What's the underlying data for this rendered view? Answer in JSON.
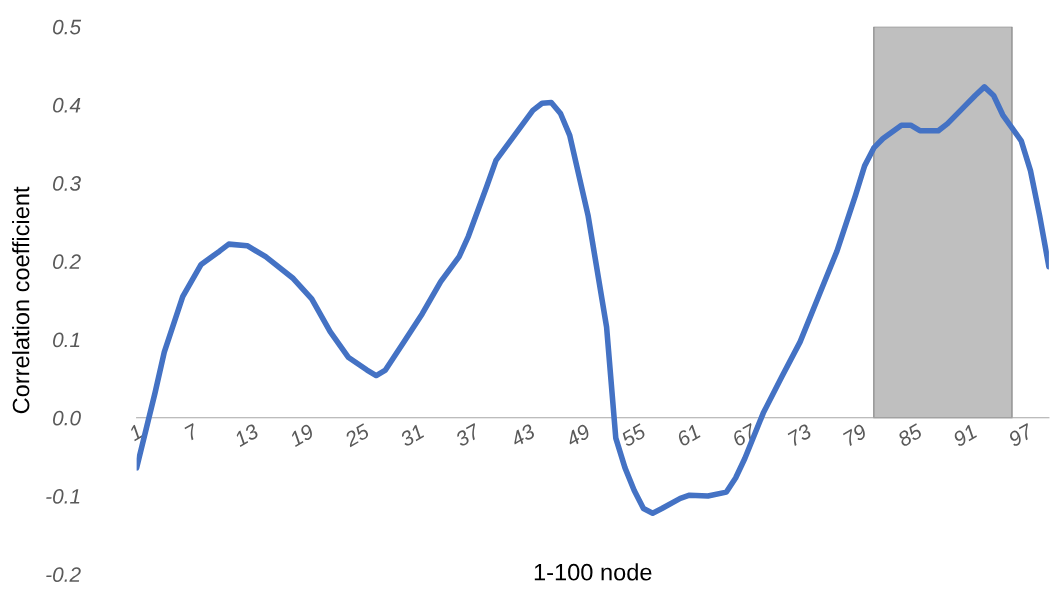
{
  "chart_data": {
    "type": "line",
    "xlabel": "1-100 node",
    "ylabel": "Correlation coefficient",
    "x": [
      1,
      3,
      4,
      6,
      8,
      10,
      11,
      13,
      15,
      18,
      20,
      22,
      24,
      26,
      27,
      28,
      30,
      32,
      34,
      36,
      37,
      39,
      40,
      42,
      44,
      45,
      46,
      47,
      48,
      50,
      52,
      53,
      54,
      55,
      56,
      57,
      58,
      60,
      61,
      63,
      65,
      66,
      67,
      69,
      71,
      73,
      75,
      77,
      79,
      80,
      81,
      82,
      84,
      85,
      86,
      88,
      89,
      91,
      92,
      93,
      94,
      95,
      97,
      98,
      99,
      100
    ],
    "series": [
      {
        "color": "#4472c4",
        "values": [
          -0.064,
          0.032,
          0.084,
          0.155,
          0.196,
          0.213,
          0.222,
          0.22,
          0.206,
          0.178,
          0.152,
          0.11,
          0.077,
          0.061,
          0.054,
          0.061,
          0.097,
          0.133,
          0.174,
          0.206,
          0.232,
          0.296,
          0.329,
          0.361,
          0.393,
          0.402,
          0.403,
          0.389,
          0.361,
          0.258,
          0.116,
          -0.026,
          -0.064,
          -0.093,
          -0.116,
          -0.122,
          -0.116,
          -0.103,
          -0.099,
          -0.1,
          -0.095,
          -0.077,
          -0.052,
          0.006,
          0.052,
          0.097,
          0.155,
          0.213,
          0.284,
          0.322,
          0.345,
          0.357,
          0.374,
          0.374,
          0.367,
          0.367,
          0.376,
          0.4,
          0.412,
          0.423,
          0.412,
          0.387,
          0.354,
          0.316,
          0.258,
          0.193
        ]
      }
    ],
    "xlim": [
      1,
      100
    ],
    "xticks": [
      1,
      7,
      13,
      19,
      25,
      31,
      37,
      43,
      49,
      55,
      61,
      67,
      73,
      79,
      85,
      91,
      97
    ],
    "ylim": [
      -0.2,
      0.5
    ],
    "yticks": [
      {
        "value": -0.2,
        "label": "-0.2"
      },
      {
        "value": -0.1,
        "label": "-0.1"
      },
      {
        "value": 0,
        "label": "0.0"
      },
      {
        "value": 0.1,
        "label": "0.1"
      },
      {
        "value": 0.2,
        "label": "0.2"
      },
      {
        "value": 0.3,
        "label": "0.3"
      },
      {
        "value": 0.4,
        "label": "0.4"
      },
      {
        "value": 0.5,
        "label": "0.5"
      }
    ],
    "bands": [
      {
        "axis": "x",
        "from": 81,
        "to": 96,
        "color": "#bfbfbf"
      }
    ],
    "grid": false,
    "legend": false,
    "marker": "none",
    "line_style": "solid"
  }
}
